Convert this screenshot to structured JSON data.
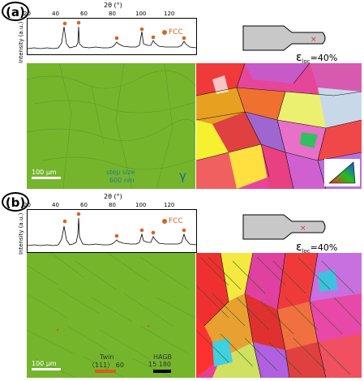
{
  "panels": [
    {
      "label": "(a)",
      "axis_title": "2θ (°)",
      "ylabel": "Intensity (a.u.)",
      "ticks": [
        "20",
        "40",
        "60",
        "80",
        "100",
        "120"
      ],
      "legend": "FCC",
      "scalebar": "100 μm",
      "step_line1": "step size",
      "step_line2": "600 nm",
      "phase": "γ",
      "strain": "ε",
      "strain_sub": "loc",
      "strain_val": "=40%"
    },
    {
      "label": "(b)",
      "axis_title": "2θ (°)",
      "ylabel": "Intensity (a.u.)",
      "ticks": [
        "20",
        "40",
        "60",
        "80",
        "100",
        "120"
      ],
      "legend": "FCC",
      "scalebar": "100 μm",
      "twin_title": "Twin",
      "twin_range": "〈111〉 60",
      "hagb_title": "HAGB",
      "hagb_range": "15   180",
      "strain": "ε",
      "strain_sub": "loc",
      "strain_val": "=40%"
    }
  ],
  "colors": {
    "fcc": "#d8641e",
    "green": "#76b82a",
    "twin": "#e2571c"
  }
}
